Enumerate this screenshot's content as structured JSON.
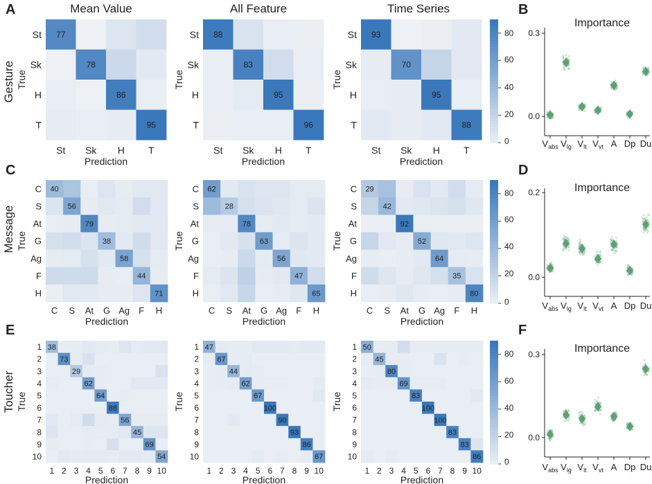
{
  "panel_letters": [
    "A",
    "B",
    "C",
    "D",
    "E",
    "F"
  ],
  "rows": [
    {
      "row_label": "Gesture",
      "letter": "A",
      "imp_letter": "B"
    },
    {
      "row_label": "Message",
      "letter": "C",
      "imp_letter": "D"
    },
    {
      "row_label": "Toucher",
      "letter": "E",
      "imp_letter": "F"
    }
  ],
  "column_titles": [
    "Mean Value",
    "All Feature",
    "Time Series"
  ],
  "axis": {
    "xlabel": "Prediction",
    "ylabel": "True"
  },
  "colorbars": [
    {
      "ticks": [
        "80",
        "60",
        "40",
        "20",
        "0"
      ]
    },
    {
      "ticks": [
        "80",
        "60",
        "40",
        "20",
        "0"
      ]
    },
    {
      "ticks": [
        "80",
        "60",
        "40",
        "20",
        "0"
      ]
    }
  ],
  "importance_title": "Importance",
  "colors": {
    "low": "#edf0f5",
    "high": "#3a78bb",
    "diamond": "#5f9e78",
    "dots": "#8fc49b"
  },
  "chart_data": [
    {
      "type": "heatmap",
      "row": "Gesture",
      "column": "Mean Value",
      "title": "Mean Value",
      "categories": [
        "St",
        "Sk",
        "H",
        "T"
      ],
      "diagonal": [
        77,
        78,
        86,
        95
      ],
      "off": [
        [
          0,
          0,
          8,
          14
        ],
        [
          0,
          0,
          17,
          5
        ],
        [
          2,
          0,
          0,
          2
        ],
        [
          3,
          2,
          3,
          0
        ]
      ],
      "vmax": 90
    },
    {
      "type": "heatmap",
      "row": "Gesture",
      "column": "All Feature",
      "title": "All Feature",
      "categories": [
        "St",
        "Sk",
        "H",
        "T"
      ],
      "diagonal": [
        88,
        83,
        95,
        96
      ],
      "off": [
        [
          0,
          10,
          2,
          1
        ],
        [
          2,
          0,
          14,
          2
        ],
        [
          2,
          4,
          0,
          1
        ],
        [
          1,
          2,
          2,
          0
        ]
      ],
      "vmax": 90
    },
    {
      "type": "heatmap",
      "row": "Gesture",
      "column": "Time Series",
      "title": "Time Series",
      "categories": [
        "St",
        "Sk",
        "H",
        "T"
      ],
      "diagonal": [
        93,
        70,
        95,
        88
      ],
      "off": [
        [
          0,
          0,
          1,
          5
        ],
        [
          3,
          0,
          20,
          6
        ],
        [
          2,
          3,
          0,
          2
        ],
        [
          5,
          3,
          5,
          0
        ]
      ],
      "vmax": 90
    },
    {
      "type": "heatmap",
      "row": "Message",
      "column": "Mean Value",
      "categories": [
        "C",
        "S",
        "At",
        "G",
        "Ag",
        "F",
        "H"
      ],
      "diagonal": [
        40,
        56,
        79,
        38,
        58,
        44,
        71
      ],
      "off": [
        [
          0,
          33,
          2,
          8,
          3,
          6,
          6
        ],
        [
          9,
          0,
          3,
          6,
          4,
          14,
          6
        ],
        [
          2,
          3,
          0,
          3,
          4,
          5,
          5
        ],
        [
          12,
          14,
          9,
          0,
          5,
          15,
          6
        ],
        [
          3,
          4,
          12,
          5,
          0,
          12,
          4
        ],
        [
          16,
          16,
          16,
          3,
          2,
          0,
          3
        ],
        [
          2,
          6,
          5,
          3,
          3,
          8,
          0
        ]
      ],
      "vmax": 90
    },
    {
      "type": "heatmap",
      "row": "Message",
      "column": "All Feature",
      "categories": [
        "C",
        "S",
        "At",
        "G",
        "Ag",
        "F",
        "H"
      ],
      "diagonal": [
        62,
        28,
        78,
        63,
        56,
        47,
        65
      ],
      "off": [
        [
          0,
          5,
          10,
          8,
          8,
          4,
          4
        ],
        [
          40,
          0,
          12,
          9,
          7,
          4,
          9
        ],
        [
          3,
          3,
          0,
          4,
          5,
          4,
          5
        ],
        [
          2,
          5,
          11,
          0,
          4,
          9,
          5
        ],
        [
          2,
          3,
          17,
          4,
          0,
          7,
          5
        ],
        [
          4,
          9,
          23,
          3,
          5,
          0,
          14
        ],
        [
          2,
          6,
          19,
          2,
          3,
          7,
          0
        ]
      ],
      "vmax": 90
    },
    {
      "type": "heatmap",
      "row": "Message",
      "column": "Time Series",
      "categories": [
        "C",
        "S",
        "At",
        "G",
        "Ag",
        "F",
        "H"
      ],
      "diagonal": [
        29,
        42,
        92,
        52,
        64,
        35,
        80
      ],
      "off": [
        [
          0,
          35,
          3,
          10,
          5,
          14,
          4
        ],
        [
          20,
          0,
          5,
          7,
          9,
          12,
          7
        ],
        [
          1,
          2,
          0,
          2,
          2,
          1,
          1
        ],
        [
          19,
          5,
          3,
          0,
          7,
          6,
          8
        ],
        [
          3,
          2,
          3,
          5,
          0,
          4,
          3
        ],
        [
          15,
          8,
          3,
          7,
          12,
          0,
          10
        ],
        [
          2,
          3,
          7,
          3,
          2,
          3,
          0
        ]
      ],
      "vmax": 90
    },
    {
      "type": "heatmap",
      "row": "Toucher",
      "column": "Mean Value",
      "categories": [
        "1",
        "2",
        "3",
        "4",
        "5",
        "6",
        "7",
        "8",
        "9",
        "10"
      ],
      "diagonal": [
        38,
        73,
        29,
        62,
        64,
        88,
        56,
        45,
        69,
        54
      ],
      "off": [
        [
          0,
          3,
          3,
          5,
          4,
          3,
          8,
          4,
          6,
          6
        ],
        [
          2,
          0,
          3,
          10,
          2,
          2,
          2,
          2,
          2,
          2
        ],
        [
          2,
          2,
          0,
          4,
          3,
          2,
          2,
          2,
          2,
          10
        ],
        [
          3,
          2,
          2,
          0,
          3,
          2,
          2,
          5,
          5,
          5
        ],
        [
          2,
          2,
          2,
          2,
          0,
          2,
          3,
          2,
          2,
          2
        ],
        [
          2,
          2,
          2,
          2,
          2,
          0,
          2,
          2,
          2,
          2
        ],
        [
          6,
          2,
          4,
          15,
          4,
          3,
          0,
          3,
          3,
          3
        ],
        [
          8,
          2,
          2,
          3,
          3,
          3,
          5,
          0,
          8,
          8
        ],
        [
          3,
          2,
          2,
          3,
          2,
          11,
          2,
          2,
          0,
          2
        ],
        [
          2,
          5,
          4,
          4,
          4,
          3,
          5,
          5,
          4,
          0
        ]
      ],
      "vmax": 90
    },
    {
      "type": "heatmap",
      "row": "Toucher",
      "column": "All Feature",
      "categories": [
        "1",
        "2",
        "3",
        "4",
        "5",
        "6",
        "7",
        "8",
        "9",
        "10"
      ],
      "diagonal": [
        47,
        67,
        44,
        62,
        67,
        100,
        90,
        93,
        86,
        67
      ],
      "off": [
        [
          0,
          4,
          3,
          3,
          5,
          5,
          5,
          4,
          5,
          5
        ],
        [
          3,
          0,
          3,
          4,
          2,
          2,
          2,
          2,
          2,
          2
        ],
        [
          2,
          3,
          0,
          4,
          3,
          2,
          2,
          2,
          2,
          2
        ],
        [
          2,
          3,
          4,
          0,
          3,
          3,
          3,
          2,
          2,
          4
        ],
        [
          2,
          2,
          2,
          2,
          0,
          2,
          2,
          2,
          2,
          6
        ],
        [
          2,
          2,
          2,
          2,
          2,
          0,
          2,
          2,
          2,
          2
        ],
        [
          2,
          2,
          5,
          2,
          2,
          2,
          0,
          2,
          2,
          2
        ],
        [
          2,
          2,
          2,
          2,
          2,
          2,
          2,
          0,
          2,
          2
        ],
        [
          2,
          2,
          2,
          2,
          2,
          2,
          2,
          2,
          0,
          2
        ],
        [
          2,
          2,
          2,
          2,
          4,
          2,
          3,
          2,
          3,
          0
        ]
      ],
      "vmax": 90
    },
    {
      "type": "heatmap",
      "row": "Toucher",
      "column": "Time Series",
      "categories": [
        "1",
        "2",
        "3",
        "4",
        "5",
        "6",
        "7",
        "8",
        "9",
        "10"
      ],
      "diagonal": [
        50,
        45,
        80,
        69,
        83,
        100,
        100,
        83,
        83,
        86
      ],
      "off": [
        [
          0,
          3,
          3,
          14,
          3,
          3,
          3,
          3,
          3,
          3
        ],
        [
          3,
          0,
          3,
          3,
          2,
          2,
          10,
          2,
          3,
          2
        ],
        [
          2,
          3,
          0,
          3,
          2,
          2,
          2,
          2,
          2,
          2
        ],
        [
          4,
          3,
          3,
          0,
          3,
          3,
          3,
          2,
          2,
          2
        ],
        [
          2,
          2,
          2,
          2,
          0,
          2,
          2,
          2,
          2,
          5
        ],
        [
          2,
          2,
          2,
          2,
          2,
          0,
          2,
          2,
          2,
          2
        ],
        [
          2,
          2,
          2,
          2,
          2,
          2,
          0,
          2,
          2,
          2
        ],
        [
          2,
          2,
          2,
          2,
          2,
          2,
          2,
          0,
          2,
          2
        ],
        [
          2,
          2,
          2,
          2,
          2,
          2,
          2,
          2,
          0,
          8
        ],
        [
          3,
          2,
          4,
          2,
          2,
          2,
          2,
          2,
          2,
          0
        ]
      ],
      "vmax": 90
    },
    {
      "type": "scatter",
      "row": "Gesture",
      "title": "Importance",
      "categories": [
        "V_abs",
        "V_lg",
        "V_lt",
        "V_vt",
        "A",
        "Dp",
        "Du"
      ],
      "means": [
        0.005,
        0.195,
        0.035,
        0.022,
        0.112,
        0.008,
        0.162
      ],
      "spread": [
        0.022,
        0.05,
        0.025,
        0.022,
        0.035,
        0.022,
        0.032
      ],
      "ylim": [
        -0.07,
        0.32
      ],
      "yticks": [
        0.0,
        0.3
      ]
    },
    {
      "type": "scatter",
      "row": "Message",
      "title": "Importance",
      "categories": [
        "V_abs",
        "V_lg",
        "V_lt",
        "V_vt",
        "A",
        "Dp",
        "Du"
      ],
      "means": [
        0.022,
        0.08,
        0.068,
        0.044,
        0.078,
        0.016,
        0.125
      ],
      "spread": [
        0.022,
        0.035,
        0.035,
        0.03,
        0.035,
        0.022,
        0.038
      ],
      "ylim": [
        -0.045,
        0.21
      ],
      "yticks": [
        0.0,
        0.2
      ]
    },
    {
      "type": "scatter",
      "row": "Toucher",
      "title": "Importance",
      "categories": [
        "V_abs",
        "V_lg",
        "V_lt",
        "V_vt",
        "A",
        "Dp",
        "Du"
      ],
      "means": [
        0.012,
        0.082,
        0.068,
        0.112,
        0.076,
        0.04,
        0.248
      ],
      "spread": [
        0.035,
        0.04,
        0.04,
        0.05,
        0.04,
        0.03,
        0.045
      ],
      "ylim": [
        -0.07,
        0.32
      ],
      "yticks": [
        0.0,
        0.3
      ]
    }
  ]
}
